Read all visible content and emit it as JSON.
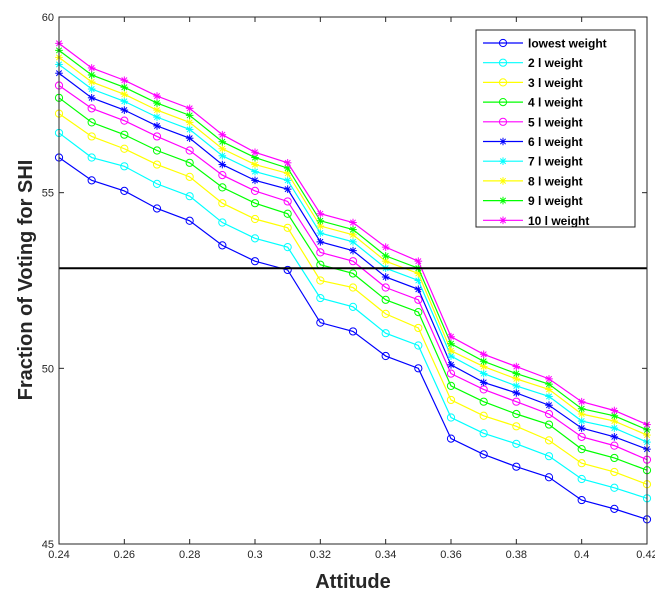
{
  "chart_data": {
    "type": "line",
    "title": "",
    "xlabel": "Attitude",
    "ylabel": "Fraction of Voting for SHI",
    "xlim": [
      0.24,
      0.42
    ],
    "ylim": [
      45,
      60
    ],
    "grid": false,
    "legend_placement": "top-right",
    "x": [
      0.24,
      0.25,
      0.26,
      0.27,
      0.28,
      0.29,
      0.3,
      0.31,
      0.32,
      0.33,
      0.34,
      0.35,
      0.36,
      0.37,
      0.38,
      0.39,
      0.4,
      0.41,
      0.42
    ],
    "x_ticks": [
      0.24,
      0.26,
      0.28,
      0.3,
      0.32,
      0.34,
      0.36,
      0.38,
      0.4,
      0.42
    ],
    "x_tick_labels": [
      "0.24",
      "0.26",
      "0.28",
      "0.3",
      "0.32",
      "0.34",
      "0.36",
      "0.38",
      "0.4",
      "0.42"
    ],
    "y_ticks": [
      45,
      50,
      55,
      60
    ],
    "y_tick_labels": [
      "45",
      "50",
      "55",
      "60"
    ],
    "reference_line": {
      "y": 52.85,
      "color": "#000000"
    },
    "series": [
      {
        "name": "lowest weight",
        "color": "#0000ff",
        "marker": "circle",
        "values": [
          56.0,
          55.35,
          55.05,
          54.55,
          54.2,
          53.5,
          53.05,
          52.8,
          51.3,
          51.05,
          50.35,
          50.0,
          48.0,
          47.55,
          47.2,
          46.9,
          46.25,
          46.0,
          45.7
        ]
      },
      {
        "name": "2 l weight",
        "color": "#00ffff",
        "marker": "circle",
        "values": [
          56.7,
          56.0,
          55.75,
          55.25,
          54.9,
          54.15,
          53.7,
          53.45,
          52.0,
          51.75,
          51.0,
          50.65,
          48.6,
          48.15,
          47.85,
          47.5,
          46.85,
          46.6,
          46.3
        ]
      },
      {
        "name": "3 l weight",
        "color": "#ffff00",
        "marker": "circle",
        "values": [
          57.25,
          56.6,
          56.25,
          55.8,
          55.45,
          54.7,
          54.25,
          54.0,
          52.5,
          52.3,
          51.55,
          51.15,
          49.1,
          48.65,
          48.35,
          47.95,
          47.3,
          47.05,
          46.7
        ]
      },
      {
        "name": "4 l weight",
        "color": "#00ff00",
        "marker": "circle",
        "values": [
          57.7,
          57.0,
          56.65,
          56.2,
          55.85,
          55.15,
          54.7,
          54.4,
          52.95,
          52.7,
          51.95,
          51.6,
          49.5,
          49.05,
          48.7,
          48.4,
          47.7,
          47.45,
          47.1
        ]
      },
      {
        "name": "5 l weight",
        "color": "#ff00ff",
        "marker": "circle",
        "values": [
          58.05,
          57.4,
          57.05,
          56.6,
          56.2,
          55.5,
          55.05,
          54.75,
          53.3,
          53.05,
          52.3,
          51.95,
          49.85,
          49.4,
          49.05,
          48.7,
          48.05,
          47.8,
          47.4
        ]
      },
      {
        "name": "6 l weight",
        "color": "#0000ff",
        "marker": "asterisk",
        "values": [
          58.4,
          57.7,
          57.35,
          56.9,
          56.55,
          55.8,
          55.35,
          55.1,
          53.6,
          53.35,
          52.6,
          52.25,
          50.1,
          49.6,
          49.3,
          48.95,
          48.3,
          48.05,
          47.7
        ]
      },
      {
        "name": "7 l weight",
        "color": "#00ffff",
        "marker": "asterisk",
        "values": [
          58.65,
          57.95,
          57.6,
          57.15,
          56.8,
          56.05,
          55.6,
          55.35,
          53.85,
          53.6,
          52.85,
          52.5,
          50.35,
          49.85,
          49.5,
          49.2,
          48.5,
          48.3,
          47.9
        ]
      },
      {
        "name": "8 l weight",
        "color": "#ffff00",
        "marker": "asterisk",
        "values": [
          58.85,
          58.15,
          57.8,
          57.35,
          57.0,
          56.25,
          55.8,
          55.55,
          54.05,
          53.8,
          53.05,
          52.7,
          50.5,
          50.05,
          49.7,
          49.4,
          48.7,
          48.5,
          48.1
        ]
      },
      {
        "name": "9 l weight",
        "color": "#00ff00",
        "marker": "asterisk",
        "values": [
          59.05,
          58.35,
          58.0,
          57.55,
          57.2,
          56.45,
          56.0,
          55.7,
          54.2,
          53.95,
          53.2,
          52.85,
          50.7,
          50.2,
          49.85,
          49.55,
          48.85,
          48.65,
          48.25
        ]
      },
      {
        "name": "10 l weight",
        "color": "#ff00ff",
        "marker": "asterisk",
        "values": [
          59.25,
          58.55,
          58.2,
          57.75,
          57.4,
          56.65,
          56.15,
          55.85,
          54.4,
          54.15,
          53.45,
          53.05,
          50.9,
          50.4,
          50.05,
          49.7,
          49.05,
          48.8,
          48.4
        ]
      }
    ]
  }
}
